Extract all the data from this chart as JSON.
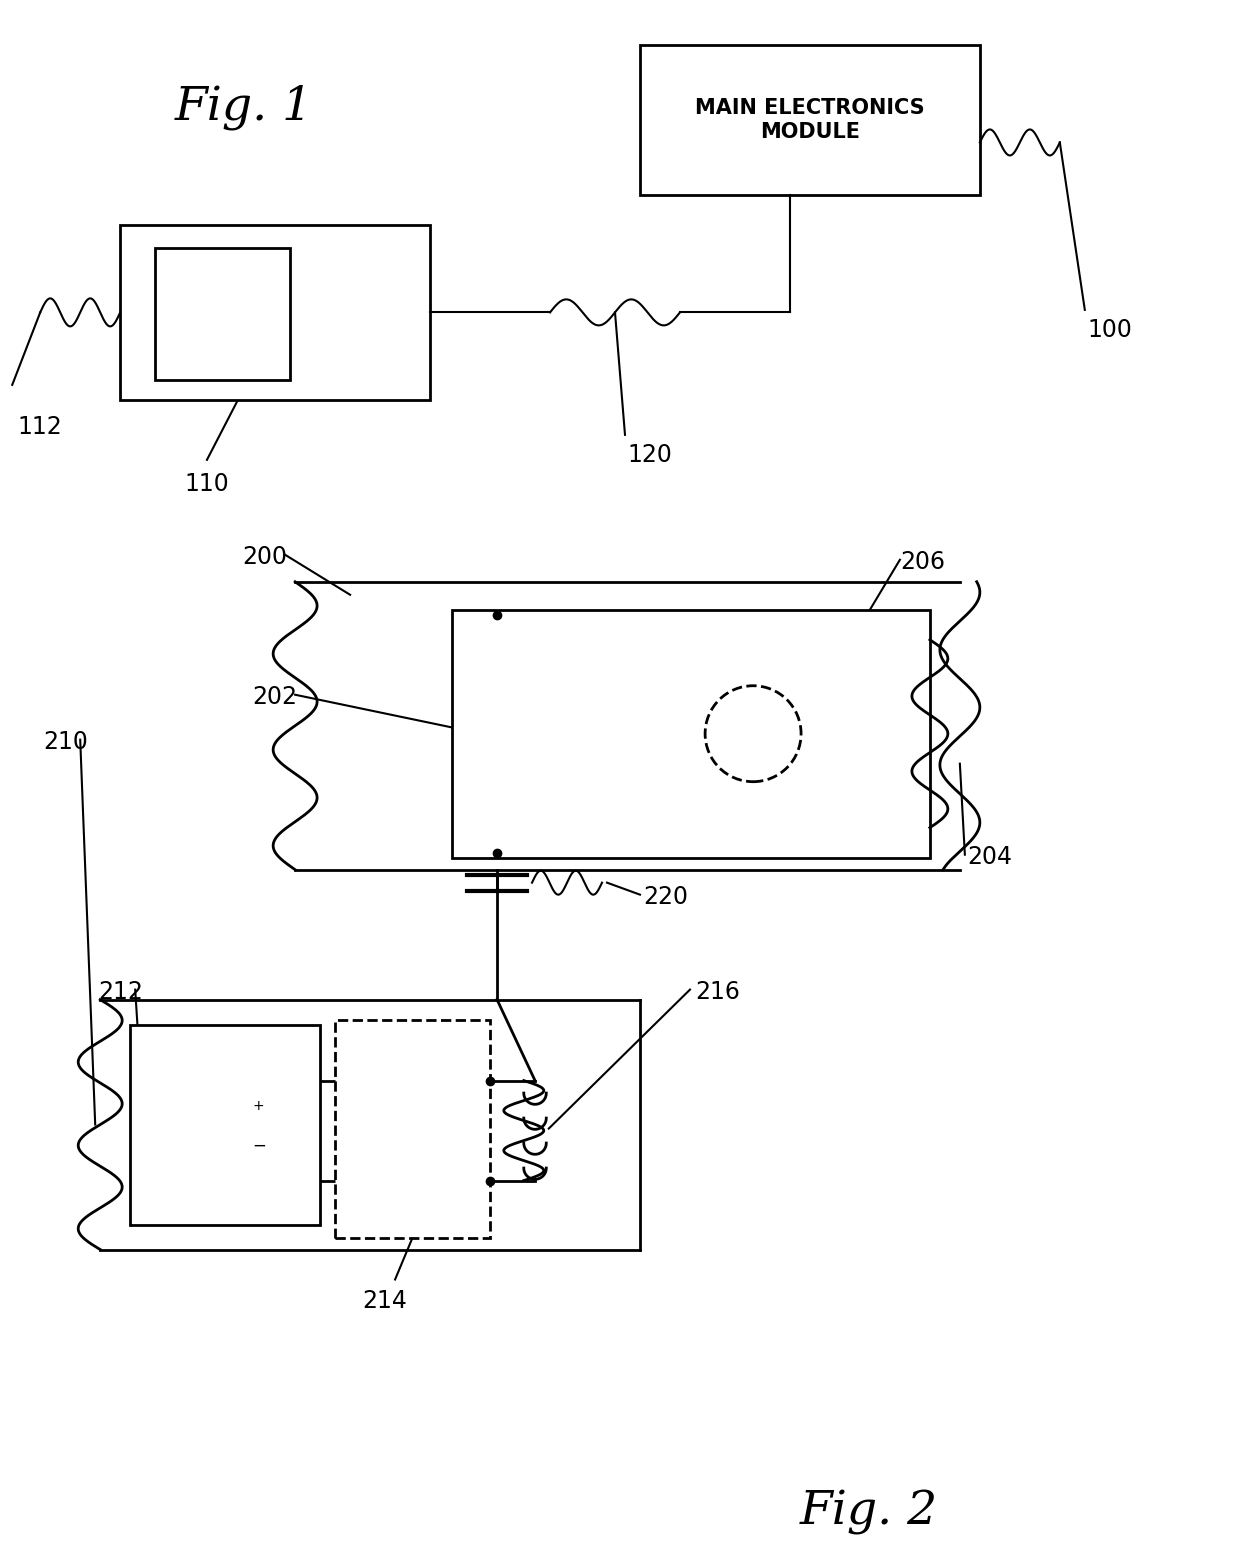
{
  "bg_color": "#ffffff",
  "fig_width": 12.4,
  "fig_height": 15.48,
  "fig1_title": "Fig. 1",
  "fig2_title": "Fig. 2",
  "main_box_label": "MAIN ELECTRONICS\nMODULE",
  "lw": 2.0,
  "lw_thin": 1.5
}
